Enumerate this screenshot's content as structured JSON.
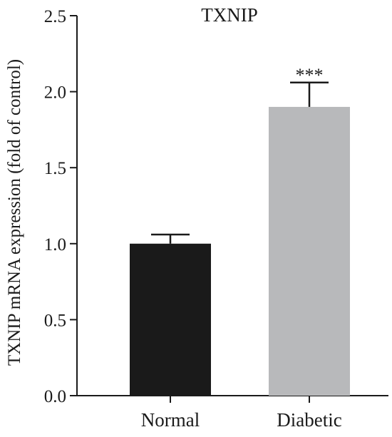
{
  "chart_data": {
    "type": "bar",
    "title": "TXNIP",
    "xlabel": "",
    "ylabel": "TXNIP mRNA expression (fold of control)",
    "categories": [
      "Normal",
      "Diabetic"
    ],
    "values": [
      1.0,
      1.9
    ],
    "error_bars": [
      0.06,
      0.16
    ],
    "significance": [
      "",
      "***"
    ],
    "bar_colors": [
      "#1a1a1a",
      "#b8b9bb"
    ],
    "ylim": [
      0,
      2.5
    ],
    "yticks": [
      0.0,
      0.5,
      1.0,
      1.5,
      2.0,
      2.5
    ],
    "ytick_labels": [
      "0.0",
      "0.5",
      "1.0",
      "1.5",
      "2.0",
      "2.5"
    ],
    "grid": false,
    "legend": "none"
  }
}
